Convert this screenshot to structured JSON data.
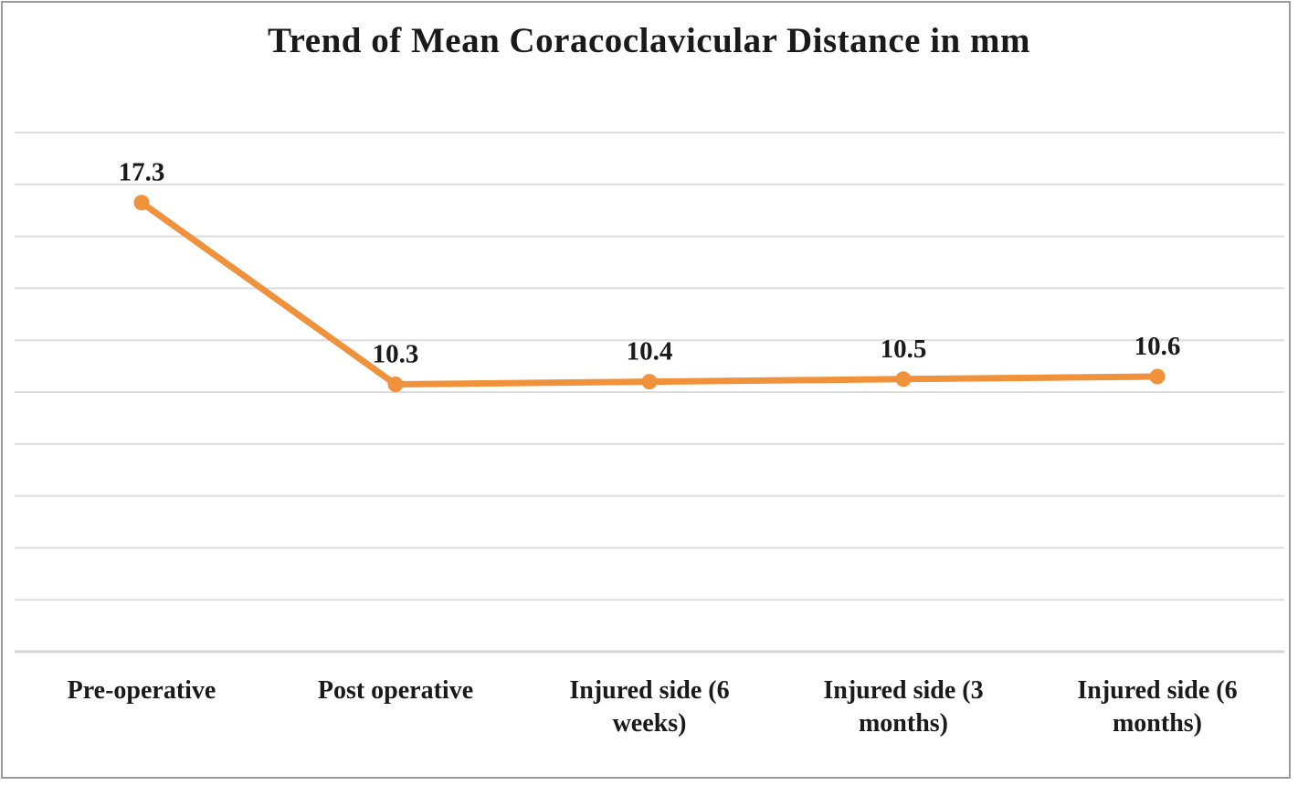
{
  "chart_data": {
    "type": "line",
    "title": "Trend of Mean Coracoclavicular Distance in mm",
    "categories": [
      "Pre-operative",
      "Post operative",
      "Injured side (6 weeks)",
      "Injured side (3 months)",
      "Injured side (6 months)"
    ],
    "values": [
      17.3,
      10.3,
      10.4,
      10.5,
      10.6
    ],
    "data_labels": [
      "17.3",
      "10.3",
      "10.4",
      "10.5",
      "10.6"
    ],
    "xlabel": "",
    "ylabel": "",
    "ylim": [
      0,
      20
    ],
    "gridline_step": 2,
    "grid": true,
    "legend_position": "none",
    "y_tick_labels_visible": false,
    "series_name": "Mean Coracoclavicular Distance (mm)",
    "marker": "circle"
  },
  "colors": {
    "line": "#F0913C",
    "marker": "#F0913C",
    "gridline": "#DCDCDC",
    "axis_line": "#D4D4D4",
    "text": "#1a1a1a",
    "frame_border": "#9b9b9b",
    "background": "#ffffff"
  }
}
